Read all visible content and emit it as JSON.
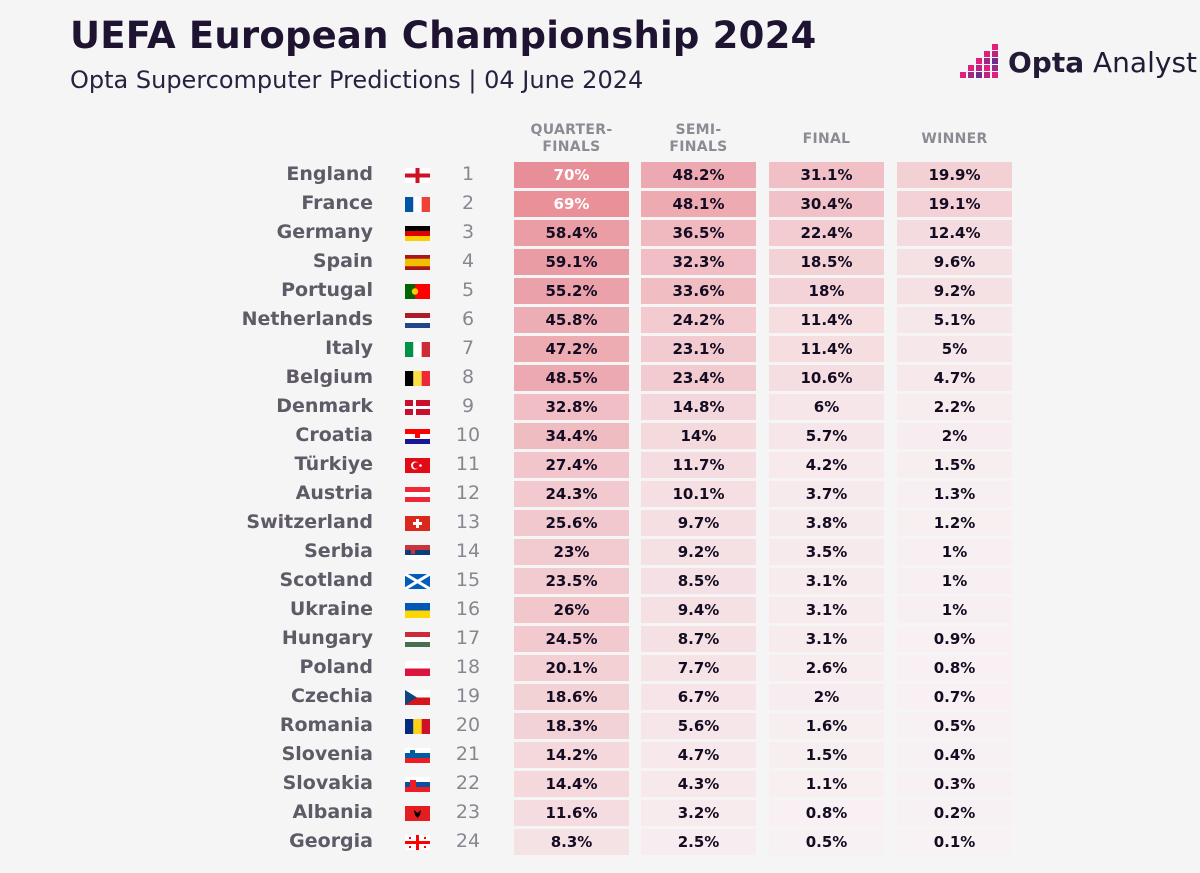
{
  "title": "UEFA European Championship 2024",
  "subtitle": "Opta Supercomputer Predictions | 04 June 2024",
  "logo": {
    "brand": "Opta",
    "product": "Analyst",
    "icon": "opta-logo-icon"
  },
  "chart_data": {
    "type": "table",
    "columns": [
      "QUARTER-FINALS",
      "SEMI-FINALS",
      "FINAL",
      "WINNER"
    ],
    "column_lines": [
      [
        "QUARTER-",
        "FINALS"
      ],
      [
        "SEMI-",
        "FINALS"
      ],
      [
        "FINAL"
      ],
      [
        "WINNER"
      ]
    ],
    "rows": [
      {
        "team": "England",
        "rank": "1",
        "flag": "england",
        "values": [
          "70%",
          "48.2%",
          "31.1%",
          "19.9%"
        ]
      },
      {
        "team": "France",
        "rank": "2",
        "flag": "france",
        "values": [
          "69%",
          "48.1%",
          "30.4%",
          "19.1%"
        ]
      },
      {
        "team": "Germany",
        "rank": "3",
        "flag": "germany",
        "values": [
          "58.4%",
          "36.5%",
          "22.4%",
          "12.4%"
        ]
      },
      {
        "team": "Spain",
        "rank": "4",
        "flag": "spain",
        "values": [
          "59.1%",
          "32.3%",
          "18.5%",
          "9.6%"
        ]
      },
      {
        "team": "Portugal",
        "rank": "5",
        "flag": "portugal",
        "values": [
          "55.2%",
          "33.6%",
          "18%",
          "9.2%"
        ]
      },
      {
        "team": "Netherlands",
        "rank": "6",
        "flag": "netherlands",
        "values": [
          "45.8%",
          "24.2%",
          "11.4%",
          "5.1%"
        ]
      },
      {
        "team": "Italy",
        "rank": "7",
        "flag": "italy",
        "values": [
          "47.2%",
          "23.1%",
          "11.4%",
          "5%"
        ]
      },
      {
        "team": "Belgium",
        "rank": "8",
        "flag": "belgium",
        "values": [
          "48.5%",
          "23.4%",
          "10.6%",
          "4.7%"
        ]
      },
      {
        "team": "Denmark",
        "rank": "9",
        "flag": "denmark",
        "values": [
          "32.8%",
          "14.8%",
          "6%",
          "2.2%"
        ]
      },
      {
        "team": "Croatia",
        "rank": "10",
        "flag": "croatia",
        "values": [
          "34.4%",
          "14%",
          "5.7%",
          "2%"
        ]
      },
      {
        "team": "Türkiye",
        "rank": "11",
        "flag": "turkiye",
        "values": [
          "27.4%",
          "11.7%",
          "4.2%",
          "1.5%"
        ]
      },
      {
        "team": "Austria",
        "rank": "12",
        "flag": "austria",
        "values": [
          "24.3%",
          "10.1%",
          "3.7%",
          "1.3%"
        ]
      },
      {
        "team": "Switzerland",
        "rank": "13",
        "flag": "switzerland",
        "values": [
          "25.6%",
          "9.7%",
          "3.8%",
          "1.2%"
        ]
      },
      {
        "team": "Serbia",
        "rank": "14",
        "flag": "serbia",
        "values": [
          "23%",
          "9.2%",
          "3.5%",
          "1%"
        ]
      },
      {
        "team": "Scotland",
        "rank": "15",
        "flag": "scotland",
        "values": [
          "23.5%",
          "8.5%",
          "3.1%",
          "1%"
        ]
      },
      {
        "team": "Ukraine",
        "rank": "16",
        "flag": "ukraine",
        "values": [
          "26%",
          "9.4%",
          "3.1%",
          "1%"
        ]
      },
      {
        "team": "Hungary",
        "rank": "17",
        "flag": "hungary",
        "values": [
          "24.5%",
          "8.7%",
          "3.1%",
          "0.9%"
        ]
      },
      {
        "team": "Poland",
        "rank": "18",
        "flag": "poland",
        "values": [
          "20.1%",
          "7.7%",
          "2.6%",
          "0.8%"
        ]
      },
      {
        "team": "Czechia",
        "rank": "19",
        "flag": "czechia",
        "values": [
          "18.6%",
          "6.7%",
          "2%",
          "0.7%"
        ]
      },
      {
        "team": "Romania",
        "rank": "20",
        "flag": "romania",
        "values": [
          "18.3%",
          "5.6%",
          "1.6%",
          "0.5%"
        ]
      },
      {
        "team": "Slovenia",
        "rank": "21",
        "flag": "slovenia",
        "values": [
          "14.2%",
          "4.7%",
          "1.5%",
          "0.4%"
        ]
      },
      {
        "team": "Slovakia",
        "rank": "22",
        "flag": "slovakia",
        "values": [
          "14.4%",
          "4.3%",
          "1.1%",
          "0.3%"
        ]
      },
      {
        "team": "Albania",
        "rank": "23",
        "flag": "albania",
        "values": [
          "11.6%",
          "3.2%",
          "0.8%",
          "0.2%"
        ]
      },
      {
        "team": "Georgia",
        "rank": "24",
        "flag": "georgia",
        "values": [
          "8.3%",
          "2.5%",
          "0.5%",
          "0.1%"
        ]
      }
    ]
  }
}
